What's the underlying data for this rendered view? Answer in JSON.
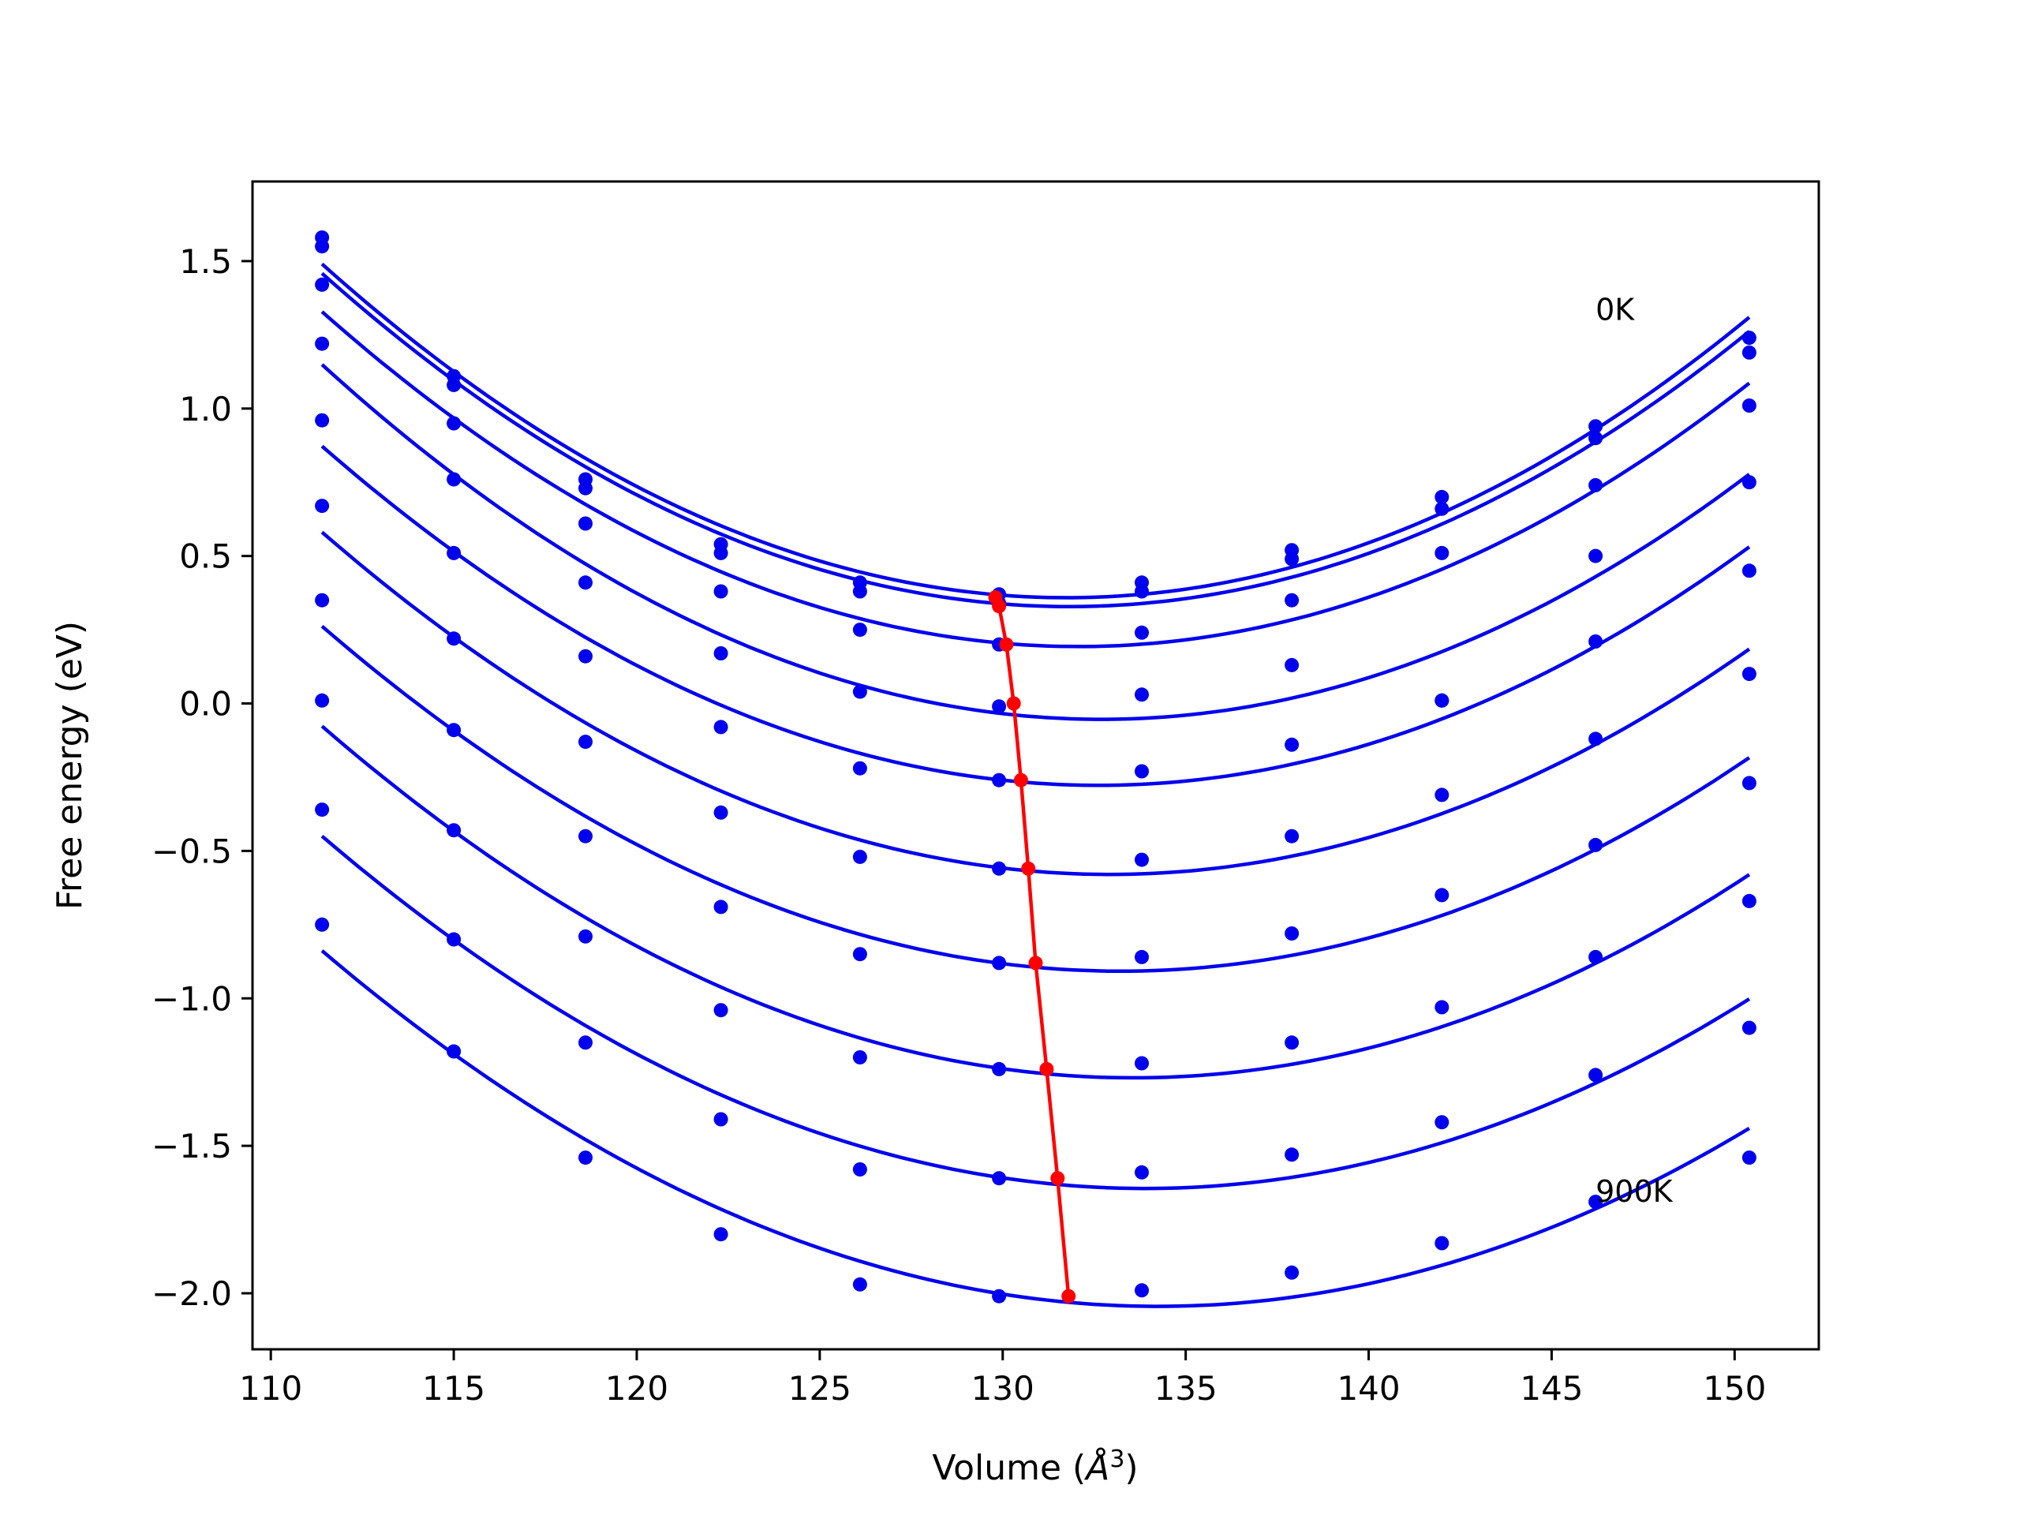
{
  "chart_data": {
    "type": "line",
    "title": "",
    "xlabel": "Volume (",
    "xlabel_unit": "Å",
    "xlabel_sup": "3",
    "xlabel_close": ")",
    "ylabel": "Free energy (eV)",
    "xlim": [
      109.5,
      152.3
    ],
    "ylim": [
      -2.19,
      1.77
    ],
    "xticks": [
      110,
      115,
      120,
      125,
      130,
      135,
      140,
      145,
      150
    ],
    "xtick_labels": [
      "110",
      "115",
      "120",
      "125",
      "130",
      "135",
      "140",
      "145",
      "150"
    ],
    "yticks": [
      1.5,
      1.0,
      0.5,
      0.0,
      -0.5,
      -1.0,
      -1.5,
      -2.0
    ],
    "ytick_labels": [
      "1.5",
      "1.0",
      "0.5",
      "0.0",
      "−0.5",
      "−1.0",
      "−1.5",
      "−2.0"
    ],
    "grid": false,
    "annotations": [
      {
        "text": "0K",
        "x": 146.2,
        "y": 1.3
      },
      {
        "text": "900K",
        "x": 146.2,
        "y": -1.69
      }
    ],
    "x": [
      111.4,
      115.0,
      118.6,
      122.3,
      126.1,
      129.9,
      133.8,
      137.9,
      142.0,
      146.2,
      150.4
    ],
    "series": [
      {
        "values": [
          1.58,
          1.11,
          0.76,
          0.54,
          0.41,
          0.37,
          0.41,
          0.52,
          0.7,
          0.94,
          1.24
        ]
      },
      {
        "values": [
          1.55,
          1.08,
          0.73,
          0.51,
          0.38,
          0.34,
          0.38,
          0.49,
          0.66,
          0.9,
          1.19
        ]
      },
      {
        "values": [
          1.42,
          0.95,
          0.61,
          0.38,
          0.25,
          0.2,
          0.24,
          0.35,
          0.51,
          0.74,
          1.01
        ]
      },
      {
        "values": [
          1.22,
          0.76,
          0.41,
          0.17,
          0.04,
          -0.01,
          0.03,
          0.13,
          0.01,
          0.5,
          0.75
        ]
      },
      {
        "values": [
          0.96,
          0.51,
          0.16,
          -0.08,
          -0.22,
          -0.26,
          -0.23,
          -0.14,
          0.01,
          0.21,
          0.45
        ]
      },
      {
        "values": [
          0.67,
          0.22,
          -0.13,
          -0.37,
          -0.52,
          -0.56,
          -0.53,
          -0.45,
          -0.31,
          -0.12,
          0.1
        ]
      },
      {
        "values": [
          0.35,
          -0.09,
          -0.45,
          -0.69,
          -0.85,
          -0.88,
          -0.86,
          -0.78,
          -0.65,
          -0.48,
          -0.27
        ]
      },
      {
        "values": [
          0.01,
          -0.43,
          -0.79,
          -1.04,
          -1.2,
          -1.24,
          -1.22,
          -1.15,
          -1.03,
          -0.86,
          -0.67
        ]
      },
      {
        "values": [
          -0.36,
          -0.8,
          -1.15,
          -1.41,
          -1.58,
          -1.61,
          -1.59,
          -1.53,
          -1.42,
          -1.26,
          -1.1
        ]
      },
      {
        "values": [
          -0.75,
          -1.18,
          -1.54,
          -1.8,
          -1.97,
          -2.01,
          -1.99,
          -1.93,
          -1.83,
          -1.69,
          -1.54
        ]
      }
    ],
    "fit_minima": {
      "x": [
        129.8,
        129.9,
        130.1,
        130.3,
        130.5,
        130.7,
        130.9,
        131.2,
        131.5,
        131.8
      ],
      "y": [
        0.36,
        0.33,
        0.2,
        0.0,
        -0.26,
        -0.56,
        -0.88,
        -1.24,
        -1.61,
        -2.01
      ]
    },
    "colors": {
      "curves": "#0000ee",
      "minima": "#ff0000"
    }
  }
}
